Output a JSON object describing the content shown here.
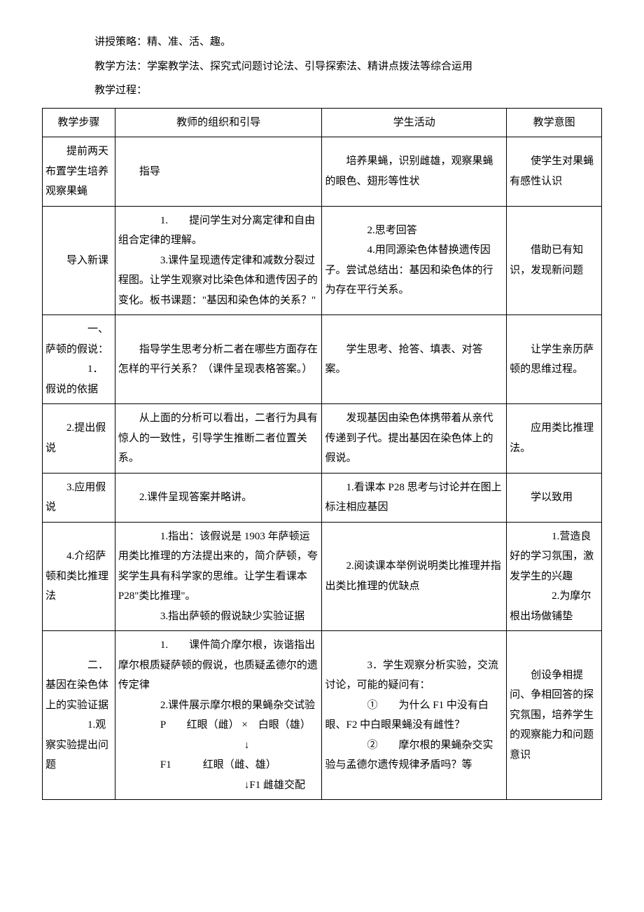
{
  "intro": {
    "line1": "讲授策略：精、准、活、趣。",
    "line2": "教学方法：学案教学法、探究式问题讨论法、引导探索法、精讲点拨法等综合运用",
    "line3": "教学过程："
  },
  "table": {
    "columns": [
      "教学步骤",
      "教师的组织和引导",
      "学生活动",
      "教学意图"
    ],
    "column_widths_pct": [
      13,
      37,
      33,
      17
    ],
    "border_color": "#000000",
    "background_color": "#ffffff",
    "font_size_pt": 11,
    "rows": [
      {
        "step": "　　提前两天布置学生培养观察果蝇",
        "teach": "　　指导",
        "student": "　　培养果蝇，识别雌雄，观察果蝇的眼色、翅形等性状",
        "intent": "　　使学生对果蝇有感性认识"
      },
      {
        "step": "　　导入新课",
        "teach_lines": [
          "　　1.　　提问学生对分离定律和自由组合定律的理解。",
          "　　3.课件呈现遗传定律和减数分裂过程图。让学生观察对比染色体和遗传因子的变化。板书课题：\"基因和染色体的关系？\""
        ],
        "student_lines": [
          "　　2.思考回答",
          "　　4.用同源染色体替换遗传因子。尝试总结出：基因和染色体的行为存在平行关系。"
        ],
        "intent": "　　借助已有知识，发现新问题"
      },
      {
        "step_lines": [
          "　　一、萨顿的假说：",
          "　　1．假说的依据"
        ],
        "teach": "　　指导学生思考分析二者在哪些方面存在怎样的平行关系？（课件呈现表格答案。）",
        "student": "　　学生思考、抢答、填表、对答案。",
        "intent": "　　让学生亲历萨顿的思维过程。"
      },
      {
        "step": "　　2.提出假说",
        "teach": "　　从上面的分析可以看出，二者行为具有惊人的一致性，引导学生推断二者位置关系。",
        "student": "　　发现基因由染色体携带着从亲代传递到子代。提出基因在染色体上的假说。",
        "intent": "　　应用类比推理法。"
      },
      {
        "step": "　　3.应用假说",
        "teach": "　　2.课件呈现答案并略讲。",
        "student": "　　1.看课本 P28 思考与讨论并在图上标注相应基因",
        "intent": "　　学以致用"
      },
      {
        "step": "　　4.介绍萨顿和类比推理法",
        "teach_lines": [
          "　　1.指出：该假说是 1903 年萨顿运用类比推理的方法提出来的，简介萨顿，夸奖学生具有科学家的思维。让学生看课本P28\"类比推理\"。",
          "　　3.指出萨顿的假说缺少实验证据"
        ],
        "student": "　　2.阅读课本举例说明类比推理并指出类比推理的优缺点",
        "intent_lines": [
          "　　1.营造良好的学习氛围，激发学生的兴趣",
          "　　2.为摩尔根出场做铺垫"
        ]
      },
      {
        "step_lines": [
          "　　二．基因在染色体上的实验证据",
          "　　1.观察实验提出问题"
        ],
        "teach_lines": [
          "　　1.　　课件简介摩尔根，诙谐指出摩尔根质疑萨顿的假说，也质疑孟德尔的遗传定律",
          "　　2.课件展示摩尔根的果蝇杂交试验",
          "　　P　　红眼（雌）  ×　白眼（雄）",
          "　　　　　　　　　　↓",
          "　　F1　　　红眼（雌、雄）",
          "　　　　　　　　　　↓F1 雌雄交配"
        ],
        "student_lines": [
          "　　3．学生观察分析实验，交流讨论，可能的疑问有：",
          "　　①　　为什么 F1 中没有白眼、F2 中白眼果蝇没有雌性？",
          "　　②　　摩尔根的果蝇杂交实验与孟德尔遗传规律矛盾吗？等"
        ],
        "intent": "　　创设争相提问、争相回答的探究氛围，培养学生的观察能力和问题意识"
      }
    ]
  }
}
